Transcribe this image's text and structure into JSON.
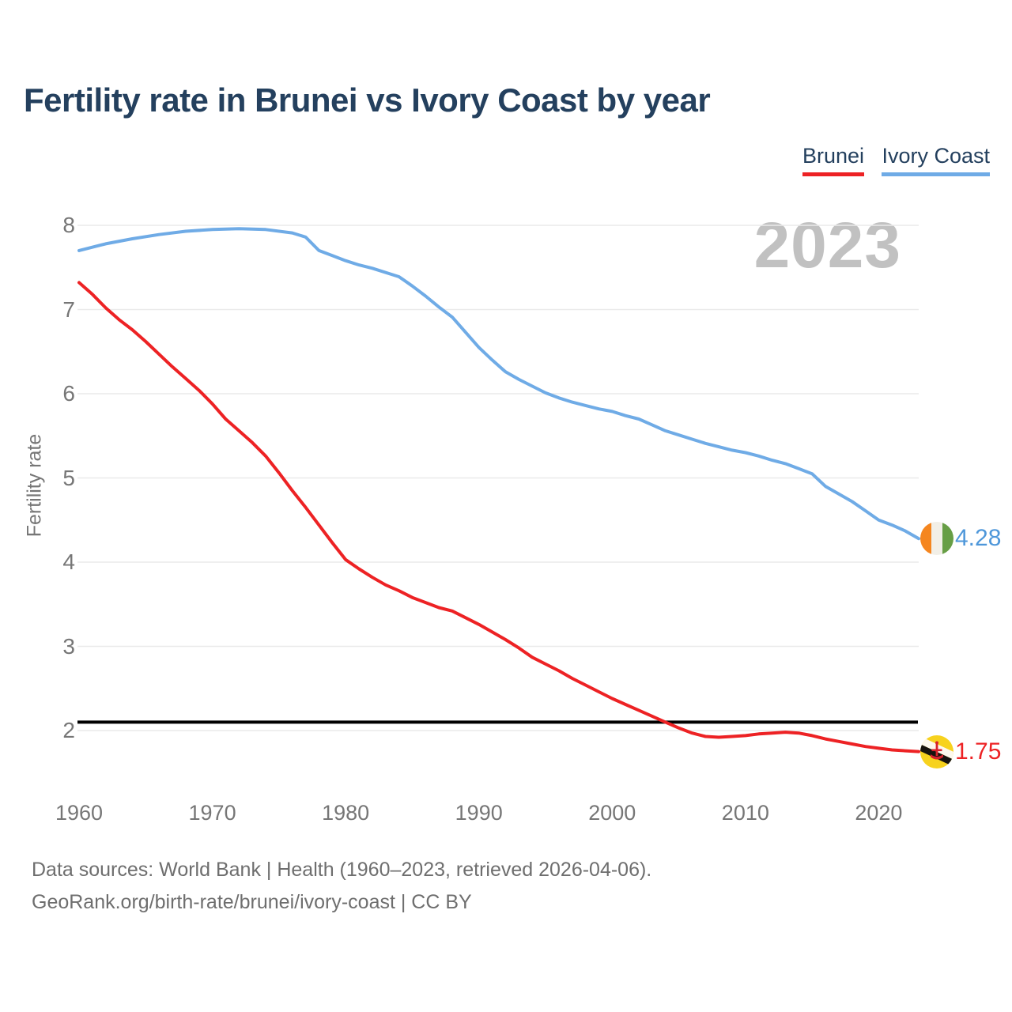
{
  "page": {
    "title": "Fertility rate in Brunei vs Ivory Coast by year",
    "watermark_year": "2023"
  },
  "legend": {
    "items": [
      {
        "label": "Brunei",
        "color": "#ed2224"
      },
      {
        "label": "Ivory Coast",
        "color": "#6fabe6"
      }
    ]
  },
  "footer": {
    "line1": "Data sources: World Bank | Health (1960–2023, retrieved 2026-04-06).",
    "line2": "GeoRank.org/birth-rate/brunei/ivory-coast | CC BY"
  },
  "colors": {
    "title_navy": "#24405e",
    "axis_gray": "#767676",
    "watermark_gray": "#c1c1c1",
    "gridline": "#eaeaea",
    "reference_black": "#000000"
  },
  "chart_data": {
    "type": "line",
    "title": "Fertility rate in Brunei vs Ivory Coast by year",
    "xlabel": "",
    "ylabel": "Fertility rate",
    "xlim": [
      1960,
      2023
    ],
    "ylim": [
      1.55,
      8.15
    ],
    "x_ticks": [
      1960,
      1970,
      1980,
      1990,
      2000,
      2010,
      2020
    ],
    "y_ticks": [
      2,
      3,
      4,
      5,
      6,
      7,
      8
    ],
    "grid": "horizontal",
    "legend_position": "top-right",
    "reference_line": {
      "value": 2.1,
      "color": "#000000"
    },
    "series": [
      {
        "name": "Brunei",
        "color": "#ed2224",
        "label_color": "#ed2224",
        "end_label": "1.75",
        "end_value": 1.75,
        "end_flag_icon": "brunei-flag-icon",
        "points": [
          [
            1960,
            7.32
          ],
          [
            1961,
            7.18
          ],
          [
            1962,
            7.02
          ],
          [
            1963,
            6.88
          ],
          [
            1964,
            6.76
          ],
          [
            1965,
            6.62
          ],
          [
            1966,
            6.47
          ],
          [
            1967,
            6.32
          ],
          [
            1968,
            6.18
          ],
          [
            1969,
            6.04
          ],
          [
            1970,
            5.88
          ],
          [
            1971,
            5.7
          ],
          [
            1972,
            5.56
          ],
          [
            1973,
            5.42
          ],
          [
            1974,
            5.26
          ],
          [
            1975,
            5.06
          ],
          [
            1976,
            4.85
          ],
          [
            1977,
            4.65
          ],
          [
            1978,
            4.44
          ],
          [
            1979,
            4.23
          ],
          [
            1980,
            4.03
          ],
          [
            1981,
            3.92
          ],
          [
            1982,
            3.82
          ],
          [
            1983,
            3.73
          ],
          [
            1984,
            3.66
          ],
          [
            1985,
            3.58
          ],
          [
            1986,
            3.52
          ],
          [
            1987,
            3.46
          ],
          [
            1988,
            3.42
          ],
          [
            1989,
            3.34
          ],
          [
            1990,
            3.26
          ],
          [
            1991,
            3.17
          ],
          [
            1992,
            3.08
          ],
          [
            1993,
            2.98
          ],
          [
            1994,
            2.87
          ],
          [
            1995,
            2.79
          ],
          [
            1996,
            2.71
          ],
          [
            1997,
            2.62
          ],
          [
            1998,
            2.54
          ],
          [
            1999,
            2.46
          ],
          [
            2000,
            2.38
          ],
          [
            2001,
            2.31
          ],
          [
            2002,
            2.24
          ],
          [
            2003,
            2.17
          ],
          [
            2004,
            2.1
          ],
          [
            2005,
            2.03
          ],
          [
            2006,
            1.97
          ],
          [
            2007,
            1.93
          ],
          [
            2008,
            1.92
          ],
          [
            2009,
            1.93
          ],
          [
            2010,
            1.94
          ],
          [
            2011,
            1.96
          ],
          [
            2012,
            1.97
          ],
          [
            2013,
            1.98
          ],
          [
            2014,
            1.97
          ],
          [
            2015,
            1.94
          ],
          [
            2016,
            1.9
          ],
          [
            2017,
            1.87
          ],
          [
            2018,
            1.84
          ],
          [
            2019,
            1.81
          ],
          [
            2020,
            1.79
          ],
          [
            2021,
            1.77
          ],
          [
            2022,
            1.76
          ],
          [
            2023,
            1.75
          ]
        ]
      },
      {
        "name": "Ivory Coast",
        "color": "#6fabe6",
        "label_color": "#4e97da",
        "end_label": "4.28",
        "end_value": 4.28,
        "end_flag_icon": "ivory-coast-flag-icon",
        "points": [
          [
            1960,
            7.7
          ],
          [
            1962,
            7.78
          ],
          [
            1964,
            7.84
          ],
          [
            1966,
            7.89
          ],
          [
            1968,
            7.93
          ],
          [
            1970,
            7.95
          ],
          [
            1972,
            7.96
          ],
          [
            1974,
            7.95
          ],
          [
            1976,
            7.91
          ],
          [
            1977,
            7.86
          ],
          [
            1978,
            7.7
          ],
          [
            1979,
            7.64
          ],
          [
            1980,
            7.58
          ],
          [
            1981,
            7.53
          ],
          [
            1982,
            7.49
          ],
          [
            1984,
            7.39
          ],
          [
            1985,
            7.28
          ],
          [
            1986,
            7.16
          ],
          [
            1987,
            7.03
          ],
          [
            1988,
            6.91
          ],
          [
            1989,
            6.73
          ],
          [
            1990,
            6.55
          ],
          [
            1991,
            6.4
          ],
          [
            1992,
            6.26
          ],
          [
            1993,
            6.17
          ],
          [
            1994,
            6.09
          ],
          [
            1995,
            6.01
          ],
          [
            1996,
            5.95
          ],
          [
            1997,
            5.9
          ],
          [
            1998,
            5.86
          ],
          [
            1999,
            5.82
          ],
          [
            2000,
            5.79
          ],
          [
            2001,
            5.74
          ],
          [
            2002,
            5.7
          ],
          [
            2003,
            5.63
          ],
          [
            2004,
            5.56
          ],
          [
            2005,
            5.51
          ],
          [
            2006,
            5.46
          ],
          [
            2007,
            5.41
          ],
          [
            2008,
            5.37
          ],
          [
            2009,
            5.33
          ],
          [
            2010,
            5.3
          ],
          [
            2011,
            5.26
          ],
          [
            2012,
            5.21
          ],
          [
            2013,
            5.17
          ],
          [
            2014,
            5.11
          ],
          [
            2015,
            5.05
          ],
          [
            2016,
            4.9
          ],
          [
            2017,
            4.81
          ],
          [
            2018,
            4.72
          ],
          [
            2019,
            4.61
          ],
          [
            2020,
            4.5
          ],
          [
            2021,
            4.44
          ],
          [
            2022,
            4.37
          ],
          [
            2023,
            4.28
          ]
        ]
      }
    ]
  }
}
